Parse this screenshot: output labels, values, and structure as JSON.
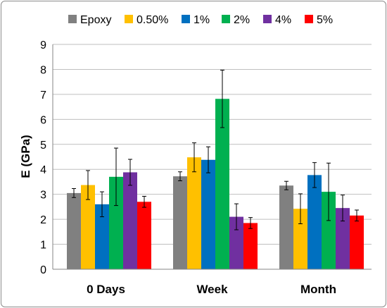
{
  "chart_data": {
    "type": "bar",
    "title": "",
    "xlabel": "",
    "ylabel": "E (GPa)",
    "ylim": [
      0,
      9
    ],
    "yticks": [
      0,
      1,
      2,
      3,
      4,
      5,
      6,
      7,
      8,
      9
    ],
    "grid": "horizontal",
    "legend_position": "top",
    "categories": [
      "0 Days",
      "Week",
      "Month"
    ],
    "series": [
      {
        "name": "Epoxy",
        "color": "#808080",
        "values": [
          3.05,
          3.72,
          3.35
        ],
        "errors": [
          0.18,
          0.18,
          0.17
        ]
      },
      {
        "name": "0.50%",
        "color": "#FFC000",
        "values": [
          3.37,
          4.48,
          2.42
        ],
        "errors": [
          0.58,
          0.58,
          0.6
        ]
      },
      {
        "name": "1%",
        "color": "#0070C0",
        "values": [
          2.6,
          4.38,
          3.77
        ],
        "errors": [
          0.5,
          0.52,
          0.5
        ]
      },
      {
        "name": "2%",
        "color": "#00B050",
        "values": [
          3.7,
          6.82,
          3.1
        ],
        "errors": [
          1.15,
          1.15,
          1.15
        ]
      },
      {
        "name": "4%",
        "color": "#7030A0",
        "values": [
          3.88,
          2.1,
          2.45
        ],
        "errors": [
          0.52,
          0.52,
          0.52
        ]
      },
      {
        "name": "5%",
        "color": "#FF0000",
        "values": [
          2.7,
          1.85,
          2.15
        ],
        "errors": [
          0.22,
          0.22,
          0.22
        ]
      }
    ]
  }
}
